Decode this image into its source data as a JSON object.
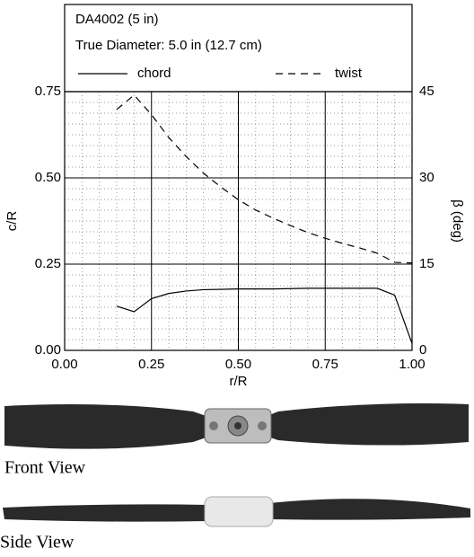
{
  "chart_data": {
    "type": "line",
    "title": "DA4002 (5 in)",
    "subtitle": "True Diameter:  5.0 in (12.7 cm)",
    "x_label": "r/R",
    "y_label": "c/R",
    "y2_label": "β (deg)",
    "xlim": [
      0,
      1
    ],
    "ylim": [
      0,
      0.75
    ],
    "y2lim": [
      0,
      45
    ],
    "xticks": [
      {
        "value": 0,
        "label": "0.00"
      },
      {
        "value": 0.25,
        "label": "0.25"
      },
      {
        "value": 0.5,
        "label": "0.50"
      },
      {
        "value": 0.75,
        "label": "0.75"
      },
      {
        "value": 1,
        "label": "1.00"
      }
    ],
    "yticks": [
      {
        "value": 0,
        "label": "0.00"
      },
      {
        "value": 0.25,
        "label": "0.25"
      },
      {
        "value": 0.5,
        "label": "0.50"
      },
      {
        "value": 0.75,
        "label": "0.75"
      }
    ],
    "y2ticks": [
      0,
      15,
      30,
      45
    ],
    "grid": true,
    "series": [
      {
        "name": "chord",
        "color": "#000000",
        "dash": "solid",
        "x": [
          0.15,
          0.2,
          0.25,
          0.3,
          0.35,
          0.4,
          0.5,
          0.6,
          0.7,
          0.8,
          0.9,
          0.95,
          1.0
        ],
        "values": [
          0.128,
          0.112,
          0.15,
          0.165,
          0.172,
          0.176,
          0.178,
          0.178,
          0.18,
          0.18,
          0.18,
          0.16,
          0.02
        ]
      },
      {
        "name": "twist",
        "color": "#000000",
        "dash": "dashed",
        "axis": "y2",
        "x": [
          0.15,
          0.2,
          0.25,
          0.3,
          0.35,
          0.4,
          0.45,
          0.5,
          0.55,
          0.6,
          0.65,
          0.7,
          0.75,
          0.8,
          0.85,
          0.9,
          0.95,
          1.0
        ],
        "values": [
          41.9,
          44.4,
          41,
          37,
          33.7,
          30.8,
          28.4,
          26.2,
          24.4,
          23,
          21.7,
          20.5,
          19.5,
          18.6,
          17.8,
          16.9,
          15.3,
          15.2
        ]
      }
    ]
  },
  "photos": {
    "front_label": "Front View",
    "side_label": "Side View"
  }
}
